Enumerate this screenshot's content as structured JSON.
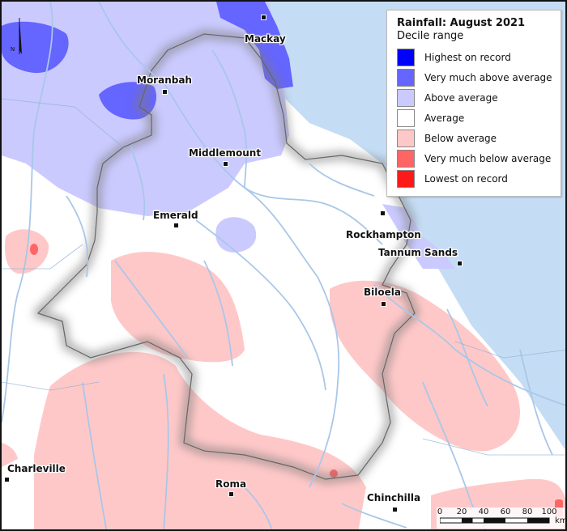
{
  "legend": {
    "title": "Rainfall: August 2021",
    "subtitle": "Decile range",
    "items": [
      {
        "label": "Highest on record",
        "color": "#0000ff"
      },
      {
        "label": "Very much above average",
        "color": "#6565ff"
      },
      {
        "label": "Above average",
        "color": "#cacaff"
      },
      {
        "label": "Average",
        "color": "#ffffff"
      },
      {
        "label": "Below average",
        "color": "#ffc8c8"
      },
      {
        "label": "Very much below average",
        "color": "#ff6565"
      },
      {
        "label": "Lowest on record",
        "color": "#ff1a1a"
      }
    ]
  },
  "towns": {
    "mackay": "Mackay",
    "moranbah": "Moranbah",
    "middlemount": "Middlemount",
    "emerald": "Emerald",
    "rockhampton": "Rockhampton",
    "tannum_sands": "Tannum Sands",
    "biloela": "Biloela",
    "charleville": "Charleville",
    "roma": "Roma",
    "chinchilla": "Chinchilla"
  },
  "scale_bar": {
    "ticks": [
      "0",
      "20",
      "40",
      "60",
      "80",
      "100"
    ],
    "unit": "km"
  },
  "north_arrow": {
    "letter": "N"
  },
  "colors": {
    "ocean": "#c4ddf5",
    "river": "#a9c7e8",
    "border": "#8bb0d4"
  }
}
